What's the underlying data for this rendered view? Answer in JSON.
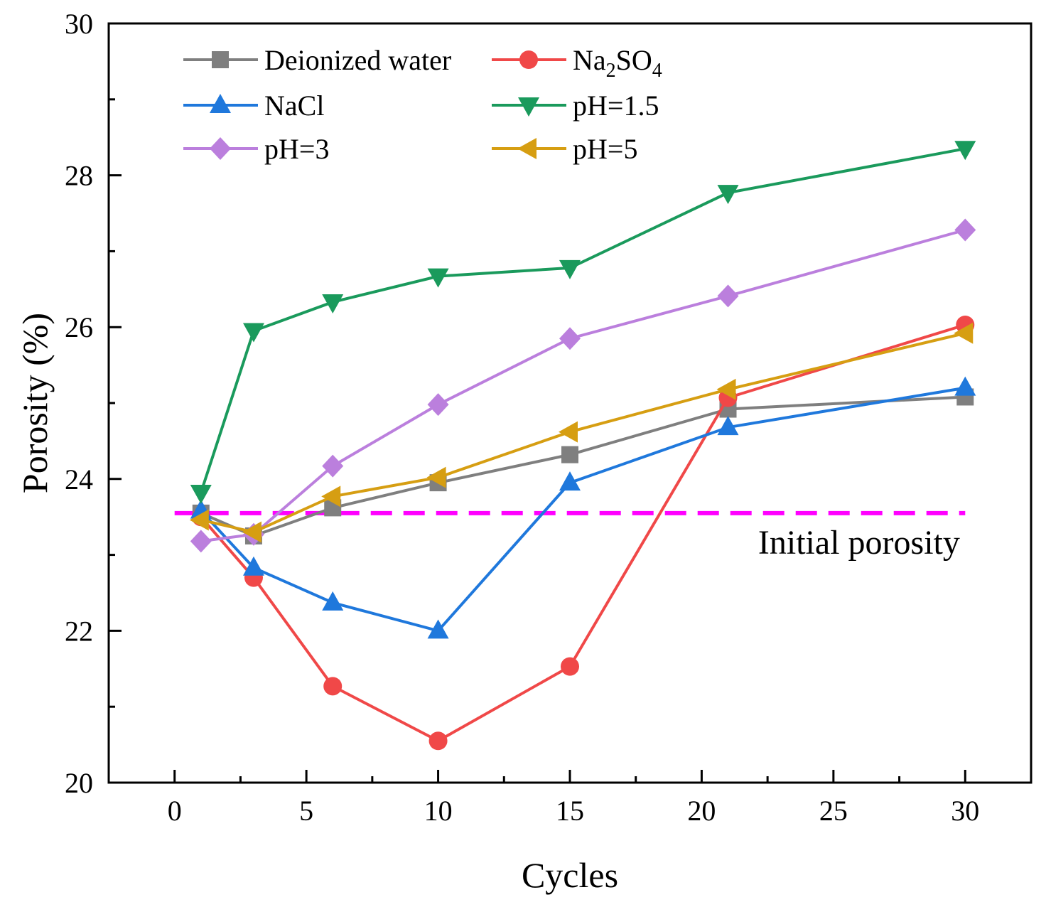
{
  "chart_data": {
    "type": "line",
    "title": "",
    "xlabel": "Cycles",
    "ylabel": "Porosity (%)",
    "xlim": [
      -2.5,
      32.5
    ],
    "ylim": [
      20,
      30
    ],
    "xticks": [
      0,
      5,
      10,
      15,
      20,
      25,
      30
    ],
    "xtick_labels": [
      "0",
      "5",
      "10",
      "15",
      "20",
      "25",
      "30"
    ],
    "yticks": [
      20,
      22,
      24,
      26,
      28,
      30
    ],
    "ytick_labels": [
      "20",
      "22",
      "24",
      "26",
      "28",
      "30"
    ],
    "x": [
      1,
      3,
      6,
      10,
      15,
      21,
      30
    ],
    "legend_position": "top-left",
    "series": [
      {
        "name": "Deionized water",
        "marker": "square",
        "color": "#7f7f7f",
        "values": [
          23.55,
          23.25,
          23.62,
          23.95,
          24.32,
          24.92,
          25.08
        ]
      },
      {
        "name": "Na2SO4",
        "name_base": "Na",
        "name_sub1": "2",
        "name_mid": "SO",
        "name_sub2": "4",
        "marker": "circle",
        "color": "#f04848",
        "values": [
          23.5,
          22.7,
          21.27,
          20.55,
          21.53,
          25.07,
          26.03
        ]
      },
      {
        "name": "NaCl",
        "marker": "triangle-up",
        "color": "#1f78dc",
        "values": [
          23.58,
          22.83,
          22.37,
          22.0,
          23.95,
          24.68,
          25.2
        ]
      },
      {
        "name": "pH=1.5",
        "marker": "triangle-down",
        "color": "#1a9a5c",
        "values": [
          23.82,
          25.95,
          26.33,
          26.67,
          26.78,
          27.77,
          28.35
        ]
      },
      {
        "name": "pH=3",
        "marker": "diamond",
        "color": "#bb7fdd",
        "values": [
          23.18,
          23.27,
          24.17,
          24.98,
          25.85,
          26.41,
          27.28
        ]
      },
      {
        "name": "pH=5",
        "marker": "triangle-left",
        "color": "#d69e12",
        "values": [
          23.46,
          23.3,
          23.77,
          24.02,
          24.62,
          25.18,
          25.92
        ]
      }
    ],
    "reference_line": {
      "label": "Initial porosity",
      "y": 23.55,
      "x_range": [
        0,
        30
      ],
      "color": "#ff00ff",
      "style": "dashed"
    }
  }
}
